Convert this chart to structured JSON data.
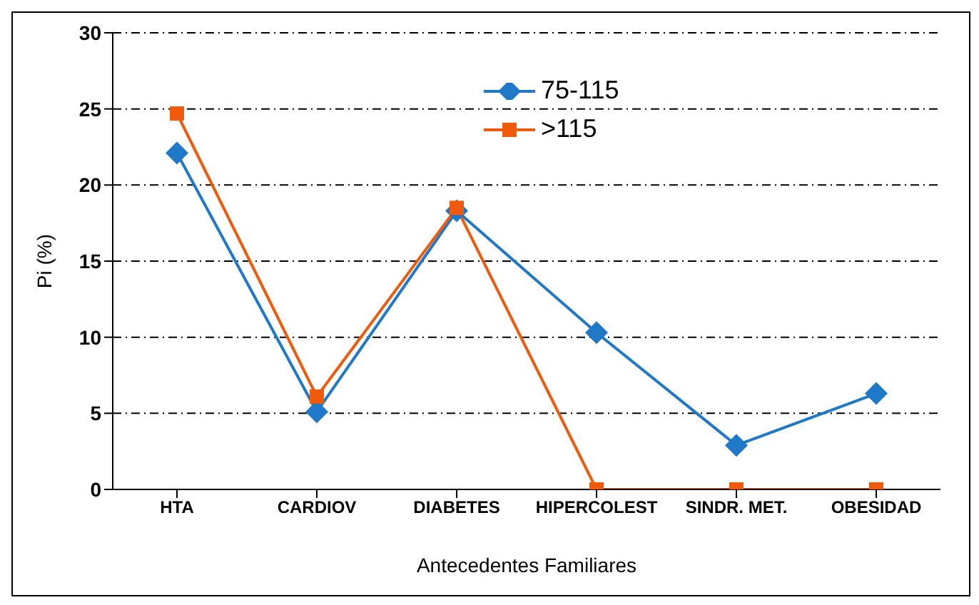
{
  "chart_data": {
    "type": "line",
    "xlabel": "Antecedentes Familiares",
    "ylabel": "Pi (%)",
    "categories": [
      "HTA",
      "CARDIOV",
      "DIABETES",
      "HIPERCOLEST",
      "SINDR. MET.",
      "OBESIDAD"
    ],
    "series": [
      {
        "name": "75-115",
        "color": "#1f78c8",
        "marker": "diamond",
        "values": [
          22.1,
          5.1,
          18.3,
          10.3,
          2.9,
          6.3
        ]
      },
      {
        "name": ">115",
        "color": "#f05a0a",
        "marker": "square",
        "values": [
          24.7,
          6.1,
          18.5,
          0,
          0,
          0
        ]
      }
    ],
    "ylim": [
      0,
      30
    ],
    "yticks": [
      0,
      5,
      10,
      15,
      20,
      25,
      30
    ],
    "grid": "y",
    "legend": "top",
    "line_style": "solid"
  }
}
